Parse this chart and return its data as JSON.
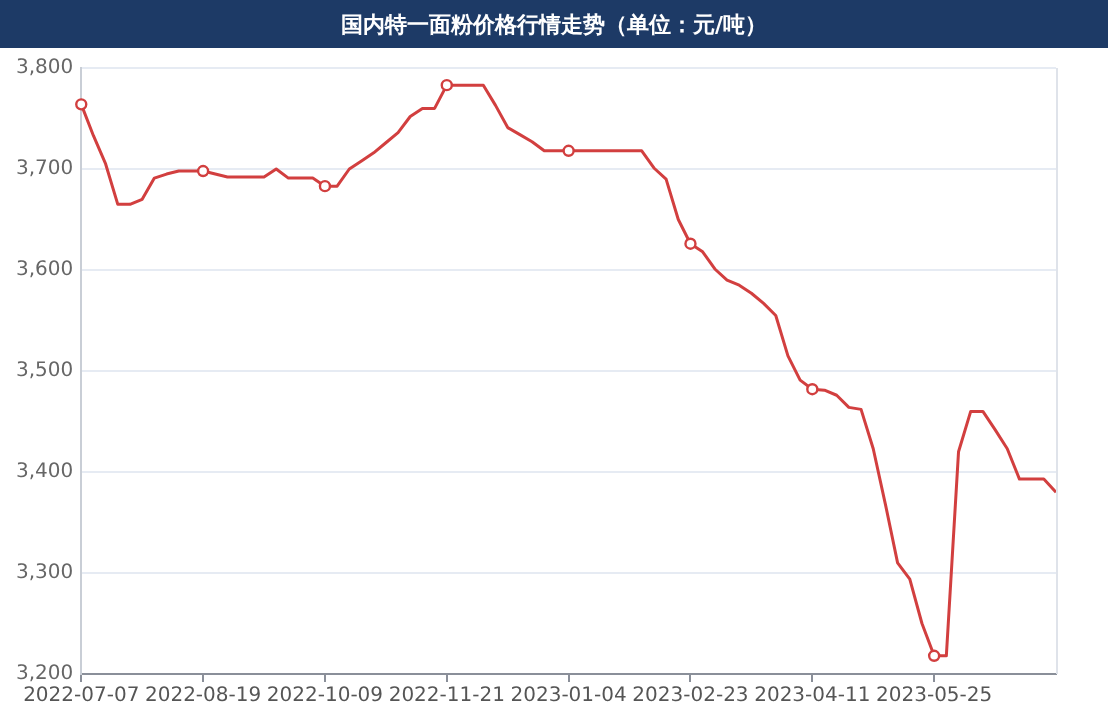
{
  "chart_data": {
    "type": "line",
    "title": "国内特一面粉价格行情走势（单位：元/吨）",
    "categories": [
      "2022-07-07",
      null,
      null,
      null,
      null,
      null,
      null,
      null,
      null,
      null,
      "2022-08-19",
      null,
      null,
      null,
      null,
      null,
      null,
      null,
      null,
      null,
      "2022-10-09",
      null,
      null,
      null,
      null,
      null,
      null,
      null,
      null,
      null,
      "2022-11-21",
      null,
      null,
      null,
      null,
      null,
      null,
      null,
      null,
      null,
      "2023-01-04",
      null,
      null,
      null,
      null,
      null,
      null,
      null,
      null,
      null,
      "2023-02-23",
      null,
      null,
      null,
      null,
      null,
      null,
      null,
      null,
      null,
      "2023-04-11",
      null,
      null,
      null,
      null,
      null,
      null,
      null,
      null,
      null,
      "2023-05-25",
      null,
      null,
      null,
      null,
      null,
      null,
      null,
      null,
      null,
      null
    ],
    "series": [
      {
        "color": "#d23f3f",
        "values": [
          3764,
          3733,
          3705,
          3665,
          3665,
          3670,
          3691,
          3695,
          3698,
          3698,
          3698,
          3695,
          3692,
          3692,
          3692,
          3692,
          3700,
          3691,
          3691,
          3691,
          3683,
          3683,
          3700,
          3708,
          3716,
          3726,
          3736,
          3752,
          3760,
          3760,
          3783,
          3783,
          3783,
          3783,
          3763,
          3741,
          3734,
          3727,
          3718,
          3718,
          3718,
          3718,
          3718,
          3718,
          3718,
          3718,
          3718,
          3701,
          3690,
          3650,
          3626,
          3618,
          3601,
          3590,
          3585,
          3577,
          3567,
          3555,
          3515,
          3491,
          3482,
          3481,
          3476,
          3464,
          3462,
          3423,
          3368,
          3310,
          3294,
          3250,
          3218,
          3218,
          3420,
          3460,
          3460,
          3442,
          3423,
          3393,
          3393,
          3393,
          3380
        ]
      }
    ],
    "ylim": [
      3200,
      3800
    ],
    "yticks": [
      {
        "value": 3200,
        "label": "3,200"
      },
      {
        "value": 3300,
        "label": "3,300"
      },
      {
        "value": 3400,
        "label": "3,400"
      },
      {
        "value": 3500,
        "label": "3,500"
      },
      {
        "value": 3600,
        "label": "3,600"
      },
      {
        "value": 3700,
        "label": "3,700"
      },
      {
        "value": 3800,
        "label": "3,800"
      }
    ],
    "grid": "y",
    "legend": false
  }
}
